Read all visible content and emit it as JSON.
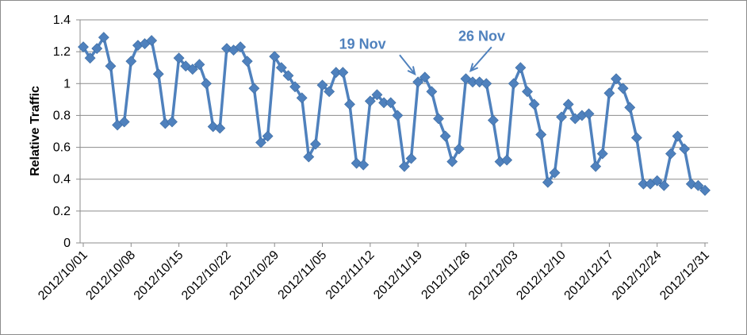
{
  "chart_data": {
    "type": "line",
    "ylabel": "Relative Traffic",
    "ylim": [
      0,
      1.4
    ],
    "yticks": [
      "0",
      "0.2",
      "0.4",
      "0.6",
      "0.8",
      "1",
      "1.2",
      "1.4"
    ],
    "xlim": [
      "2012/10/01",
      "2012/12/31"
    ],
    "xticks": [
      "2012/10/01",
      "2012/10/08",
      "2012/10/15",
      "2012/10/22",
      "2012/10/29",
      "2012/11/05",
      "2012/11/12",
      "2012/11/19",
      "2012/11/26",
      "2012/12/03",
      "2012/12/10",
      "2012/12/17",
      "2012/12/24",
      "2012/12/31"
    ],
    "grid": "horizontal",
    "series": [
      {
        "color": "#4f81bd",
        "marker": "diamond",
        "x": [
          "2012/10/01",
          "2012/10/02",
          "2012/10/03",
          "2012/10/04",
          "2012/10/05",
          "2012/10/06",
          "2012/10/07",
          "2012/10/08",
          "2012/10/09",
          "2012/10/10",
          "2012/10/11",
          "2012/10/12",
          "2012/10/13",
          "2012/10/14",
          "2012/10/15",
          "2012/10/16",
          "2012/10/17",
          "2012/10/18",
          "2012/10/19",
          "2012/10/20",
          "2012/10/21",
          "2012/10/22",
          "2012/10/23",
          "2012/10/24",
          "2012/10/25",
          "2012/10/26",
          "2012/10/27",
          "2012/10/28",
          "2012/10/29",
          "2012/10/30",
          "2012/10/31",
          "2012/11/01",
          "2012/11/02",
          "2012/11/03",
          "2012/11/04",
          "2012/11/05",
          "2012/11/06",
          "2012/11/07",
          "2012/11/08",
          "2012/11/09",
          "2012/11/10",
          "2012/11/11",
          "2012/11/12",
          "2012/11/13",
          "2012/11/14",
          "2012/11/15",
          "2012/11/16",
          "2012/11/17",
          "2012/11/18",
          "2012/11/19",
          "2012/11/20",
          "2012/11/21",
          "2012/11/22",
          "2012/11/23",
          "2012/11/24",
          "2012/11/25",
          "2012/11/26",
          "2012/11/27",
          "2012/11/28",
          "2012/11/29",
          "2012/11/30",
          "2012/12/01",
          "2012/12/02",
          "2012/12/03",
          "2012/12/04",
          "2012/12/05",
          "2012/12/06",
          "2012/12/07",
          "2012/12/08",
          "2012/12/09",
          "2012/12/10",
          "2012/12/11",
          "2012/12/12",
          "2012/12/13",
          "2012/12/14",
          "2012/12/15",
          "2012/12/16",
          "2012/12/17",
          "2012/12/18",
          "2012/12/19",
          "2012/12/20",
          "2012/12/21",
          "2012/12/22",
          "2012/12/23",
          "2012/12/24",
          "2012/12/25",
          "2012/12/26",
          "2012/12/27",
          "2012/12/28",
          "2012/12/29",
          "2012/12/30",
          "2012/12/31"
        ],
        "values": [
          1.23,
          1.16,
          1.22,
          1.29,
          1.11,
          0.74,
          0.76,
          1.14,
          1.24,
          1.25,
          1.27,
          1.06,
          0.75,
          0.76,
          1.16,
          1.11,
          1.09,
          1.12,
          1.0,
          0.73,
          0.72,
          1.22,
          1.21,
          1.23,
          1.14,
          0.97,
          0.63,
          0.67,
          1.17,
          1.1,
          1.05,
          0.98,
          0.91,
          0.54,
          0.62,
          0.99,
          0.95,
          1.07,
          1.07,
          0.87,
          0.5,
          0.49,
          0.89,
          0.93,
          0.88,
          0.88,
          0.8,
          0.48,
          0.53,
          1.01,
          1.04,
          0.95,
          0.78,
          0.67,
          0.51,
          0.59,
          1.03,
          1.01,
          1.01,
          1.0,
          0.77,
          0.51,
          0.52,
          1.0,
          1.1,
          0.95,
          0.87,
          0.68,
          0.38,
          0.44,
          0.79,
          0.87,
          0.78,
          0.8,
          0.81,
          0.48,
          0.56,
          0.94,
          1.03,
          0.97,
          0.85,
          0.66,
          0.37,
          0.37,
          0.39,
          0.36,
          0.56,
          0.67,
          0.59,
          0.37,
          0.36,
          0.33
        ]
      }
    ],
    "annotations": [
      {
        "text": "19 Nov",
        "date": "2012/11/19"
      },
      {
        "text": "26 Nov",
        "date": "2012/11/26"
      }
    ]
  }
}
